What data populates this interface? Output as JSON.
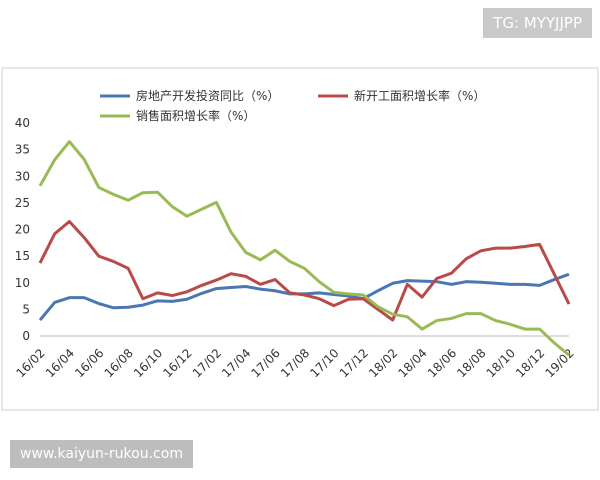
{
  "watermark": "TG: MYYJJPP",
  "footer": "www.kaiyun-rukou.com",
  "chart_data": {
    "type": "line",
    "categories": [
      "16/02",
      null,
      "16/04",
      null,
      "16/06",
      null,
      "16/08",
      null,
      "16/10",
      null,
      "16/12",
      null,
      "17/02",
      null,
      "17/04",
      null,
      "17/06",
      null,
      "17/08",
      null,
      "17/10",
      null,
      "17/12",
      null,
      "18/02",
      null,
      "18/04",
      null,
      "18/06",
      null,
      "18/08",
      null,
      "18/10",
      null,
      "18/12",
      null,
      "19/02"
    ],
    "series": [
      {
        "name": "房地产开发投资同比（%）",
        "color": "#4a76b2",
        "values": [
          3,
          6.3,
          7.2,
          7.2,
          6.1,
          5.3,
          5.4,
          5.8,
          6.6,
          6.5,
          6.9,
          8,
          8.9,
          9.1,
          9.3,
          8.8,
          8.5,
          7.9,
          7.9,
          8.1,
          7.8,
          7.5,
          7.0,
          8.5,
          9.9,
          10.4,
          10.3,
          10.2,
          9.7,
          10.2,
          10.1,
          9.9,
          9.7,
          9.7,
          9.5,
          10.6,
          11.6
        ]
      },
      {
        "name": "新开工面积增长率（%）",
        "color": "#b84a47",
        "values": [
          13.7,
          19.2,
          21.5,
          18.5,
          15,
          14,
          12.7,
          7,
          8.1,
          7.6,
          8.3,
          9.5,
          10.5,
          11.7,
          11.2,
          9.7,
          10.6,
          8.1,
          7.7,
          7,
          5.7,
          6.9,
          7,
          5,
          3,
          9.7,
          7.3,
          10.8,
          11.8,
          14.5,
          16,
          16.5,
          16.5,
          16.8,
          17.2,
          11.6,
          6
        ]
      },
      {
        "name": "销售面积增长率（%）",
        "color": "#99bb55",
        "values": [
          28.2,
          33.1,
          36.5,
          33.2,
          27.9,
          26.6,
          25.5,
          26.9,
          27,
          24.3,
          22.5,
          23.8,
          25.1,
          19.5,
          15.7,
          14.3,
          16.1,
          14,
          12.7,
          10.2,
          8.2,
          7.9,
          7.7,
          5.5,
          4.1,
          3.6,
          1.3,
          2.9,
          3.3,
          4.2,
          4.2,
          2.9,
          2.2,
          1.3,
          1.3,
          -1.3,
          -3.6
        ]
      }
    ],
    "ylim": [
      0,
      40
    ],
    "yticks": [
      0,
      5,
      10,
      15,
      20,
      25,
      30,
      35,
      40
    ],
    "grid": false
  }
}
